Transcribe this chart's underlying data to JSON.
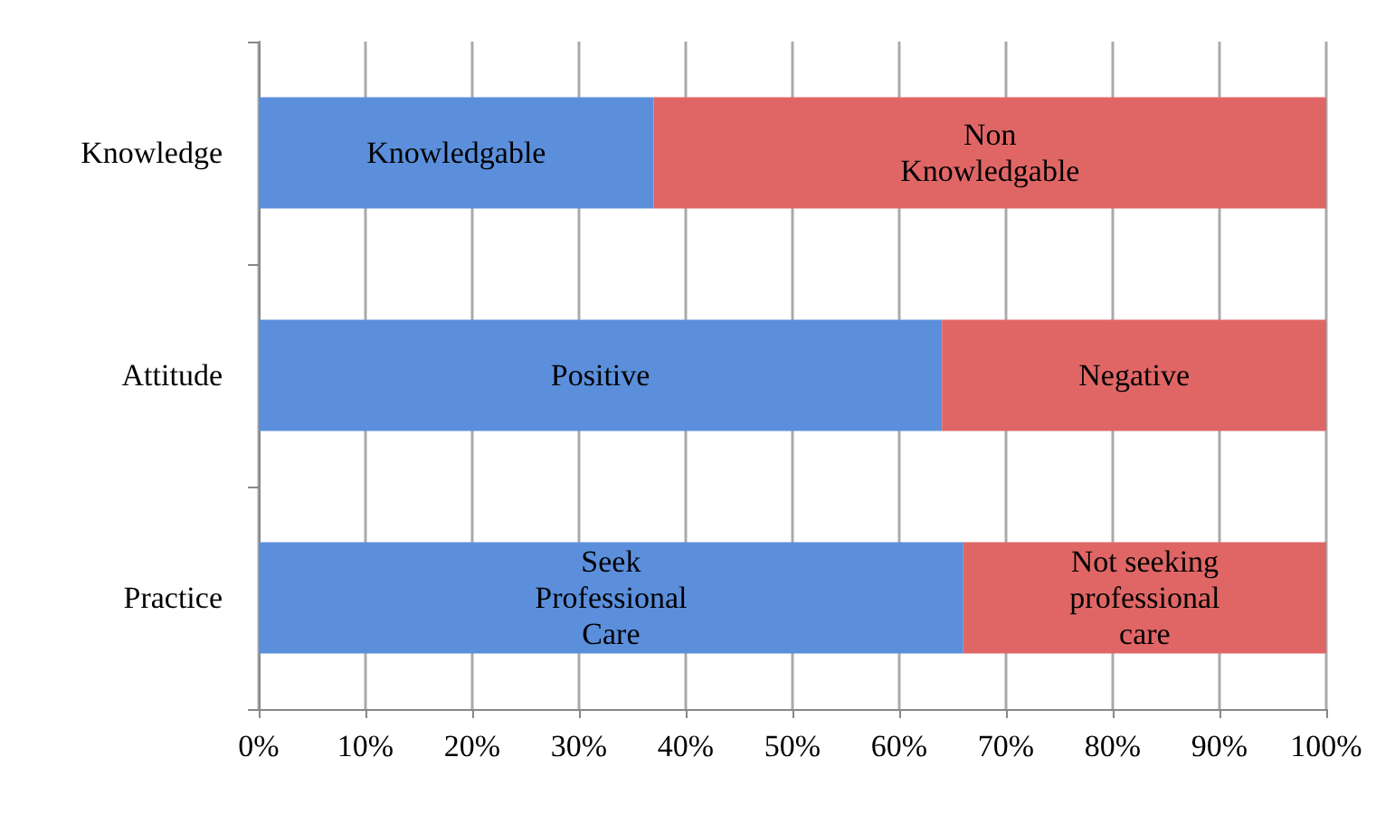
{
  "chart_data": {
    "type": "bar",
    "orientation": "horizontal",
    "stacked": true,
    "categories": [
      "Knowledge",
      "Attitude",
      "Practice"
    ],
    "series": [
      {
        "color": "#5b8fdc",
        "values": [
          37,
          64,
          66
        ],
        "value_labels": [
          "Knowledgable",
          "Positive",
          "Seek\nProfessional\nCare"
        ]
      },
      {
        "color": "#e06666",
        "values": [
          63,
          36,
          34
        ],
        "value_labels": [
          "Non\nKnowledgable",
          "Negative",
          "Not seeking\nprofessional\ncare"
        ]
      }
    ],
    "xlim": [
      0,
      100
    ],
    "xticks": [
      {
        "value": 0,
        "label": "0%"
      },
      {
        "value": 10,
        "label": "10%"
      },
      {
        "value": 20,
        "label": "20%"
      },
      {
        "value": 30,
        "label": "30%"
      },
      {
        "value": 40,
        "label": "40%"
      },
      {
        "value": 50,
        "label": "50%"
      },
      {
        "value": 60,
        "label": "60%"
      },
      {
        "value": 70,
        "label": "70%"
      },
      {
        "value": 80,
        "label": "80%"
      },
      {
        "value": 90,
        "label": "90%"
      },
      {
        "value": 100,
        "label": "100%"
      }
    ],
    "grid": "x"
  }
}
